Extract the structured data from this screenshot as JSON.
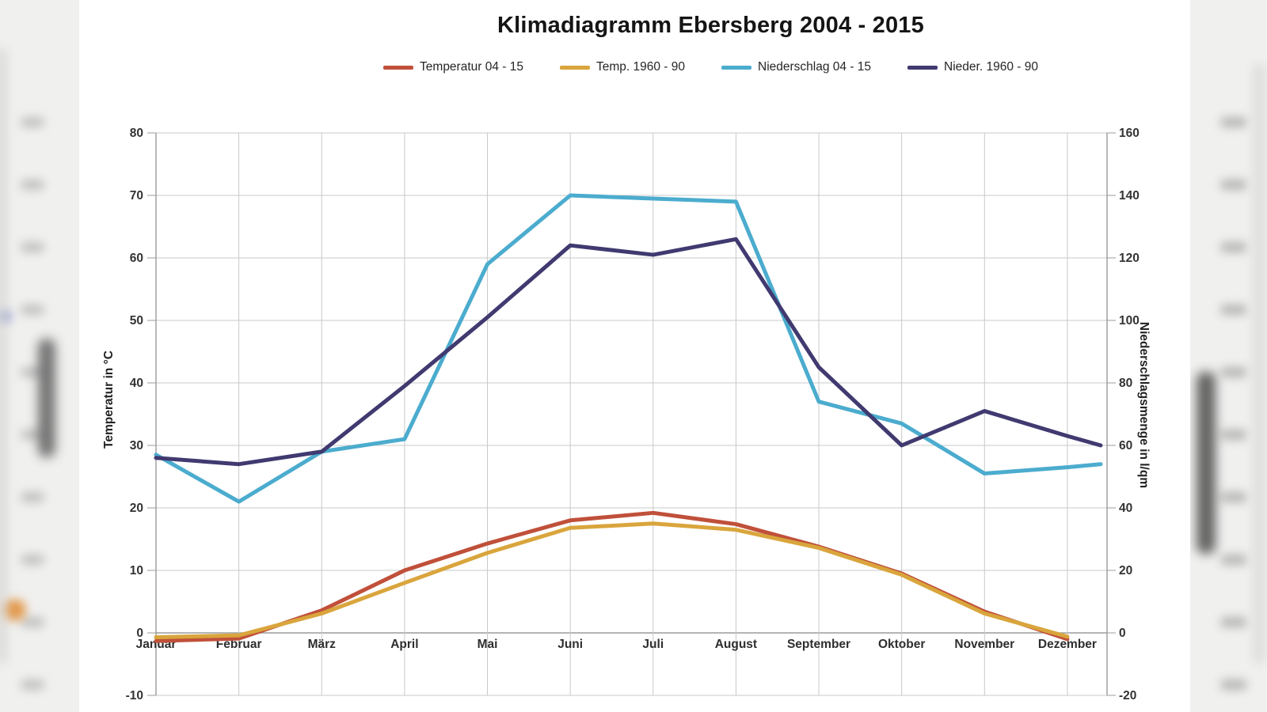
{
  "chart_data": {
    "type": "line",
    "title": "Klimadiagramm Ebersberg 2004 - 2015",
    "categories": [
      "Januar",
      "Februar",
      "März",
      "April",
      "Mai",
      "Juni",
      "Juli",
      "August",
      "September",
      "Oktober",
      "November",
      "Dezember"
    ],
    "series": [
      {
        "name": "Temperatur 04 - 15",
        "axis": "left",
        "color": "#c0503a",
        "values": [
          -1.3,
          -0.9,
          3.6,
          10.0,
          14.3,
          18.0,
          19.2,
          17.4,
          13.8,
          9.5,
          3.4,
          -1.0
        ]
      },
      {
        "name": "Temp. 1960 - 90",
        "axis": "left",
        "color": "#d9a53c",
        "values": [
          -0.7,
          -0.4,
          3.1,
          8.0,
          12.8,
          16.8,
          17.5,
          16.5,
          13.6,
          9.3,
          3.1,
          -0.6
        ]
      },
      {
        "name": "Niederschlag 04 - 15",
        "axis": "right",
        "color": "#4bacce",
        "values": [
          57,
          42,
          58,
          62,
          118,
          140,
          139,
          138,
          74,
          67,
          51,
          53
        ],
        "edge_extension": 54
      },
      {
        "name": "Nieder. 1960 - 90",
        "axis": "right",
        "color": "#403a70",
        "values": [
          56,
          54,
          58,
          79,
          101,
          124,
          121,
          126,
          85,
          60,
          71,
          63
        ],
        "edge_extension": 60
      }
    ],
    "left_axis": {
      "label": "Temperatur in °C",
      "min": -10,
      "max": 80,
      "step": 10
    },
    "right_axis": {
      "label": "Niederschlagsmenge in l/qm",
      "min": -20,
      "max": 160,
      "step": 20
    },
    "grid": true,
    "legend_position": "top"
  }
}
